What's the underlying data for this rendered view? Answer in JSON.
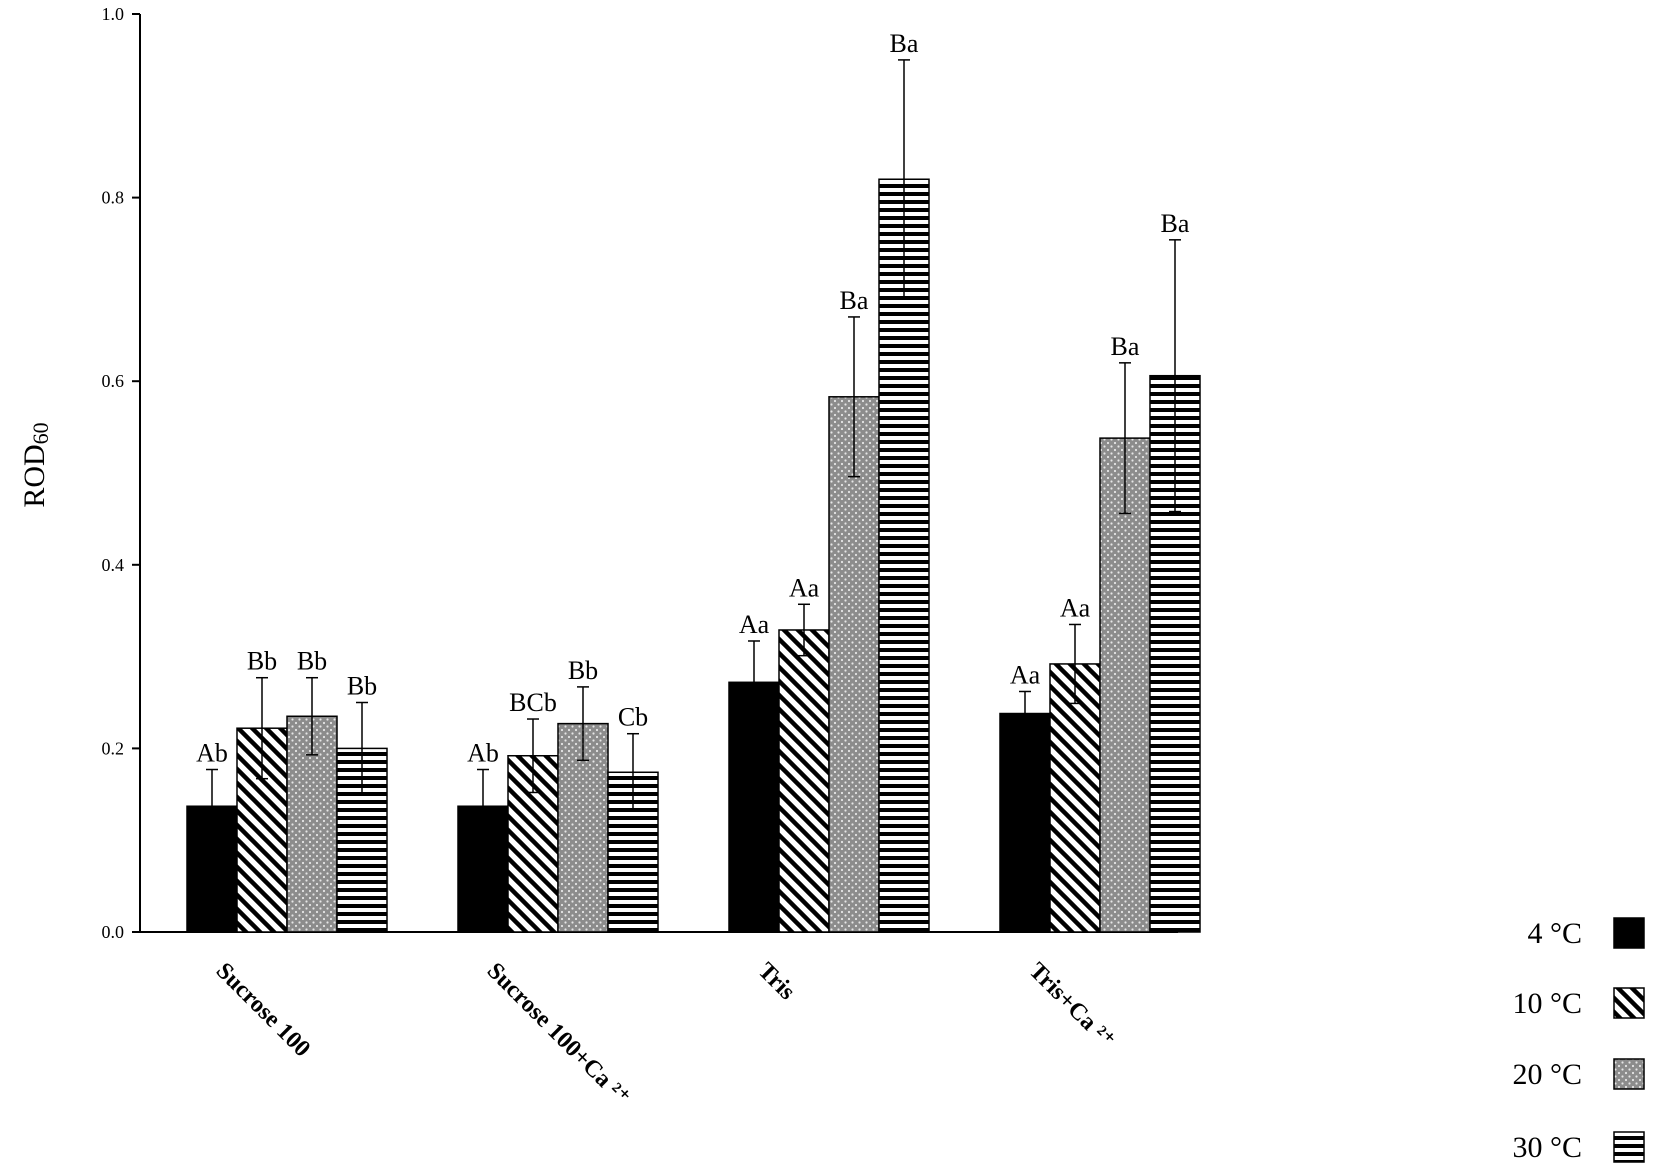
{
  "chart_data": {
    "type": "bar",
    "title": "",
    "xlabel": "",
    "ylabel": "ROD",
    "ylabel_subscript": "60",
    "ylim": [
      0,
      1.0
    ],
    "yticks": [
      "0.0",
      "0.2",
      "0.4",
      "0.6",
      "0.8",
      "1.0"
    ],
    "grid": false,
    "legend_position": "bottom-right",
    "categories": [
      "Sucrose 100",
      "Sucrose 100+Ca ²⁺",
      "Tris",
      "Tris+Ca ²⁺"
    ],
    "series": [
      {
        "name": "4 °C",
        "pattern": "solid",
        "values": [
          0.137,
          0.137,
          0.272,
          0.238
        ],
        "errors": [
          0.04,
          0.04,
          0.045,
          0.024
        ],
        "labels": [
          "Ab",
          "Ab",
          "Aa",
          "Aa"
        ]
      },
      {
        "name": "10 °C",
        "pattern": "diagonal",
        "values": [
          0.222,
          0.192,
          0.329,
          0.292
        ],
        "errors": [
          0.055,
          0.04,
          0.028,
          0.043
        ],
        "labels": [
          "Bb",
          "BCb",
          "Aa",
          "Aa"
        ]
      },
      {
        "name": "20 °C",
        "pattern": "dots",
        "values": [
          0.235,
          0.227,
          0.583,
          0.538
        ],
        "errors": [
          0.042,
          0.04,
          0.087,
          0.082
        ],
        "labels": [
          "Bb",
          "Bb",
          "Ba",
          "Ba"
        ]
      },
      {
        "name": "30 °C",
        "pattern": "horizontal",
        "values": [
          0.2,
          0.174,
          0.82,
          0.606
        ],
        "errors": [
          0.05,
          0.042,
          0.13,
          0.148
        ],
        "labels": [
          "Bb",
          "Cb",
          "Ba",
          "Ba"
        ]
      }
    ],
    "colors": {
      "axis": "#000000",
      "bar_fill": "#000000",
      "dots_bg": "#8c8c8c"
    }
  }
}
